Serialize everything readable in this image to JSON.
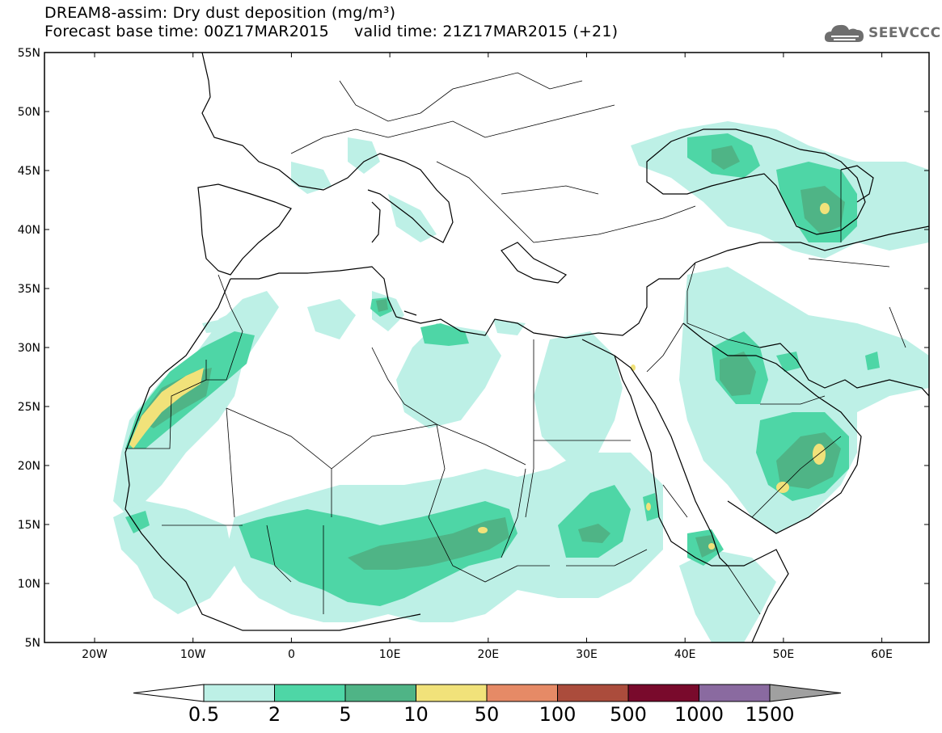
{
  "title": {
    "line1": "DREAM8-assim: Dry dust deposition (mg/m³)",
    "line2": "Forecast base time: 00Z17MAR2015     valid time: 21Z17MAR2015 (+21)"
  },
  "logo": {
    "text": "SEEVCCC",
    "icon": "cloud-icon"
  },
  "axes": {
    "lat_labels": [
      "55N",
      "50N",
      "45N",
      "40N",
      "35N",
      "30N",
      "25N",
      "20N",
      "15N",
      "10N",
      "5N"
    ],
    "lon_labels": [
      "20W",
      "10W",
      "0",
      "10E",
      "20E",
      "30E",
      "40E",
      "50E",
      "60E"
    ]
  },
  "colorbar": {
    "labels": [
      "0.5",
      "2",
      "5",
      "10",
      "50",
      "100",
      "500",
      "1000",
      "1500"
    ],
    "colors": [
      "#bdf0e6",
      "#4ed6a6",
      "#4fb486",
      "#f1e27a",
      "#e68a66",
      "#ab4c3c",
      "#790a2c",
      "#8a6aa0",
      "#a0a0a0"
    ]
  }
}
